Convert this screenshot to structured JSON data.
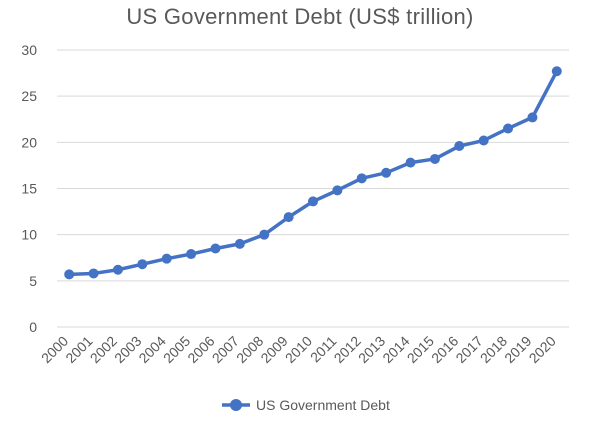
{
  "chart_data": {
    "type": "line",
    "title": "US Government Debt (US$ trillion)",
    "xlabel": "",
    "ylabel": "",
    "categories": [
      "2000",
      "2001",
      "2002",
      "2003",
      "2004",
      "2005",
      "2006",
      "2007",
      "2008",
      "2009",
      "2010",
      "2011",
      "2012",
      "2013",
      "2014",
      "2015",
      "2016",
      "2017",
      "2018",
      "2019",
      "2020"
    ],
    "series": [
      {
        "name": "US Government Debt",
        "values": [
          5.7,
          5.8,
          6.2,
          6.8,
          7.4,
          7.9,
          8.5,
          9.0,
          10.0,
          11.9,
          13.6,
          14.8,
          16.1,
          16.7,
          17.8,
          18.2,
          19.6,
          20.2,
          21.5,
          22.7,
          27.7
        ]
      }
    ],
    "ylim": [
      0,
      30
    ],
    "yticks": [
      0,
      5,
      10,
      15,
      20,
      25,
      30
    ],
    "grid": true,
    "legend_position": "bottom",
    "colors": {
      "series": "#4472C4",
      "grid": "#D9D9D9",
      "text": "#595959"
    }
  }
}
